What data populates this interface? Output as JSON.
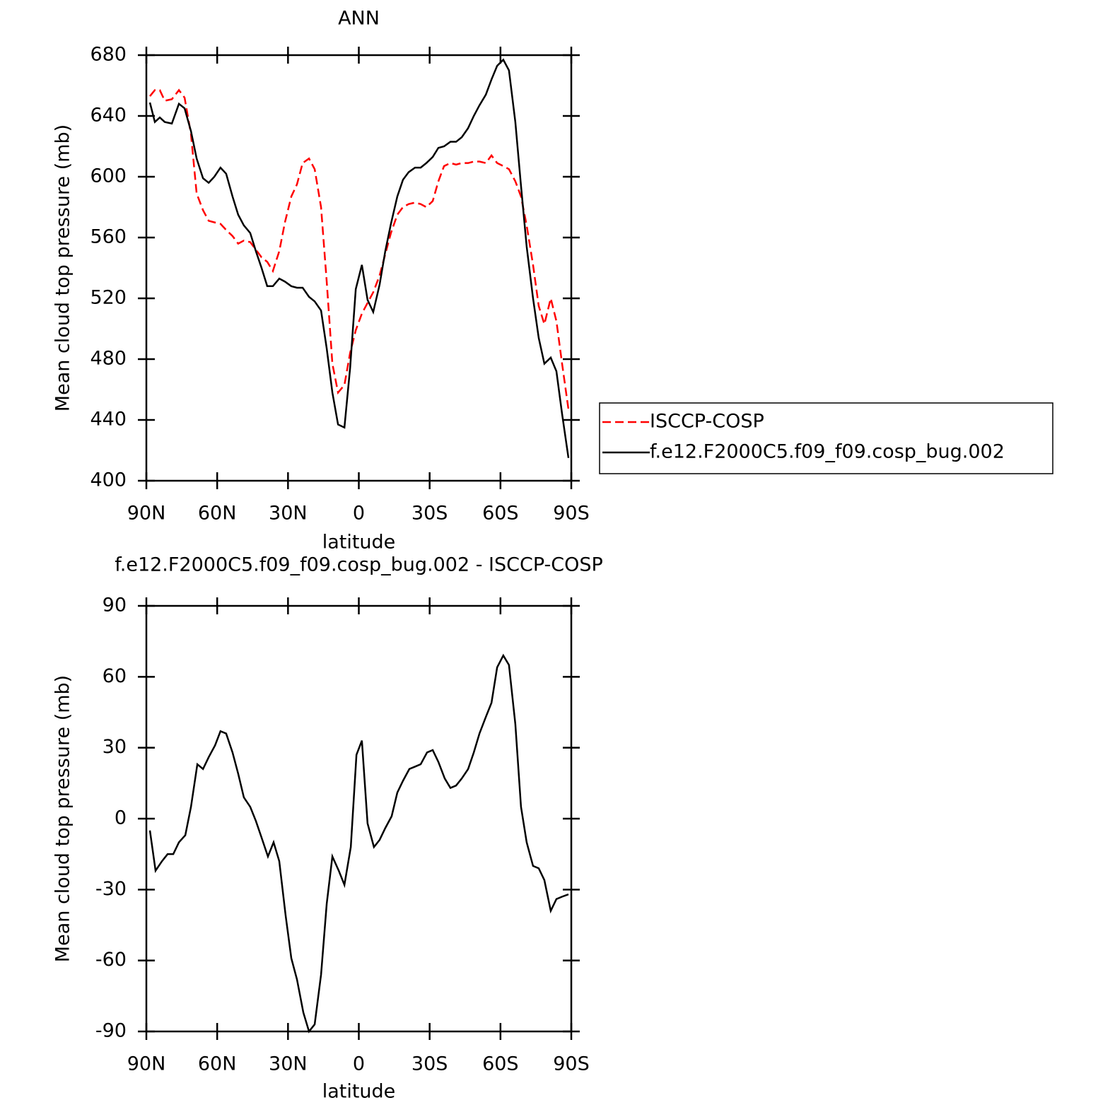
{
  "chart_data": [
    {
      "type": "line",
      "title": "ANN",
      "xlabel": "latitude",
      "ylabel": "Mean cloud top pressure (mb)",
      "x": [
        88.5,
        86.4,
        84.3,
        82.2,
        79.2,
        76.2,
        73.8,
        71.1,
        68.7,
        66.0,
        63.6,
        61.2,
        58.6,
        56.2,
        53.5,
        51.1,
        48.7,
        46.0,
        43.6,
        41.2,
        38.8,
        36.4,
        33.7,
        31.3,
        28.6,
        26.2,
        23.8,
        21.1,
        18.7,
        16.0,
        13.6,
        11.2,
        8.8,
        6.1,
        3.7,
        1.3,
        -1.3,
        -3.7,
        -6.1,
        -8.8,
        -11.2,
        -13.6,
        -16.3,
        -18.7,
        -21.1,
        -23.8,
        -26.2,
        -28.6,
        -31.3,
        -33.7,
        -36.1,
        -38.8,
        -41.2,
        -43.6,
        -46.3,
        -48.7,
        -51.1,
        -53.8,
        -56.2,
        -58.6,
        -61.2,
        -63.6,
        -66.3,
        -68.7,
        -71.1,
        -73.8,
        -76.2,
        -78.6,
        -81.3,
        -83.7,
        -86.1,
        -88.8
      ],
      "series": [
        {
          "name": "ISCCP-COSP",
          "color": "#ff0000",
          "style": "dashed",
          "values": [
            653,
            657,
            657,
            650,
            651,
            657,
            652,
            628,
            589,
            578,
            571,
            570,
            569,
            565,
            561,
            556,
            558,
            557,
            552,
            547,
            544,
            538,
            551,
            570,
            587,
            595,
            609,
            612,
            605,
            580,
            531,
            477,
            458,
            463,
            484,
            499,
            510,
            517,
            524,
            535,
            549,
            563,
            575,
            580,
            582,
            583,
            582,
            580,
            584,
            597,
            607,
            609,
            608,
            609,
            609,
            610,
            610,
            609,
            614,
            609,
            607,
            605,
            597,
            587,
            568,
            542,
            515,
            503,
            520,
            505,
            477,
            447
          ]
        },
        {
          "name": "f.e12.F2000C5.f09_f09.cosp_bug.002",
          "color": "#000000",
          "style": "solid",
          "values": [
            648.8,
            636,
            639,
            636,
            635,
            648,
            645,
            630,
            612,
            599,
            596,
            600,
            606,
            602,
            587,
            575,
            568,
            563,
            551,
            540,
            528,
            528,
            533,
            531,
            528,
            527,
            527,
            521,
            518,
            512,
            487,
            458,
            437,
            435,
            474,
            526,
            542,
            519,
            511,
            529,
            551,
            569,
            587,
            598,
            603,
            606,
            606,
            609,
            613,
            619,
            620,
            623,
            623,
            626,
            632,
            640,
            647,
            654,
            664,
            673,
            677,
            670,
            636,
            594,
            554,
            520,
            494,
            477,
            481,
            472,
            444,
            415
          ]
        }
      ],
      "xlim": [
        90,
        -90
      ],
      "xticks": [
        {
          "value": 90,
          "label": "90N"
        },
        {
          "value": 60,
          "label": "60N"
        },
        {
          "value": 30,
          "label": "30N"
        },
        0,
        {
          "value": -30,
          "label": "30S"
        },
        {
          "value": -60,
          "label": "60S"
        },
        {
          "value": -90,
          "label": "90S"
        }
      ],
      "ylim": [
        400,
        680
      ],
      "yticks": [
        400,
        440,
        480,
        520,
        560,
        600,
        640,
        680
      ],
      "legend": "right"
    },
    {
      "type": "line",
      "title": "f.e12.F2000C5.f09_f09.cosp_bug.002 - ISCCP-COSP",
      "xlabel": "latitude",
      "ylabel": "Mean cloud top pressure (mb)",
      "x": [
        88.5,
        86.1,
        83.4,
        81.0,
        78.6,
        76.2,
        73.5,
        71.1,
        68.4,
        66.0,
        63.6,
        60.9,
        58.6,
        56.2,
        53.5,
        51.1,
        48.7,
        46.0,
        43.6,
        41.2,
        38.5,
        36.1,
        33.7,
        31.0,
        28.6,
        26.2,
        23.5,
        21.1,
        18.7,
        16.0,
        13.6,
        11.2,
        8.5,
        6.1,
        3.4,
        1.0,
        -1.3,
        -3.7,
        -6.4,
        -8.8,
        -11.2,
        -13.9,
        -16.3,
        -18.7,
        -21.4,
        -23.8,
        -26.2,
        -28.9,
        -31.3,
        -33.7,
        -36.4,
        -38.8,
        -41.2,
        -43.6,
        -46.3,
        -48.7,
        -51.1,
        -53.8,
        -56.2,
        -58.6,
        -61.2,
        -63.6,
        -66.3,
        -68.7,
        -71.1,
        -73.8,
        -76.2,
        -78.6,
        -81.3,
        -83.7,
        -86.1,
        -88.8
      ],
      "series": [
        {
          "color": "#000000",
          "style": "solid",
          "values": [
            -5,
            -22,
            -18,
            -15,
            -15,
            -10,
            -7,
            5,
            23,
            21,
            26,
            31,
            37,
            36,
            28,
            19,
            9,
            5,
            -1,
            -8,
            -16,
            -10,
            -18,
            -41,
            -59,
            -68,
            -82,
            -90,
            -87,
            -66,
            -36,
            -16,
            -22,
            -28,
            -12,
            27,
            33,
            -2,
            -12,
            -9,
            -4,
            1,
            11,
            16,
            21,
            22,
            23,
            28,
            29,
            24,
            17,
            13,
            14,
            17,
            21,
            28,
            36,
            43,
            49,
            64,
            69,
            65,
            40,
            5,
            -10,
            -20,
            -21,
            -26,
            -39,
            -34,
            -33,
            -32
          ]
        }
      ],
      "xlim": [
        90,
        -90
      ],
      "xticks": [
        {
          "value": 90,
          "label": "90N"
        },
        {
          "value": 60,
          "label": "60N"
        },
        {
          "value": 30,
          "label": "30N"
        },
        0,
        {
          "value": -30,
          "label": "30S"
        },
        {
          "value": -60,
          "label": "60S"
        },
        {
          "value": -90,
          "label": "90S"
        }
      ],
      "ylim": [
        -90,
        90
      ],
      "yticks": [
        -90,
        -60,
        -30,
        0,
        30,
        60,
        90
      ]
    }
  ]
}
